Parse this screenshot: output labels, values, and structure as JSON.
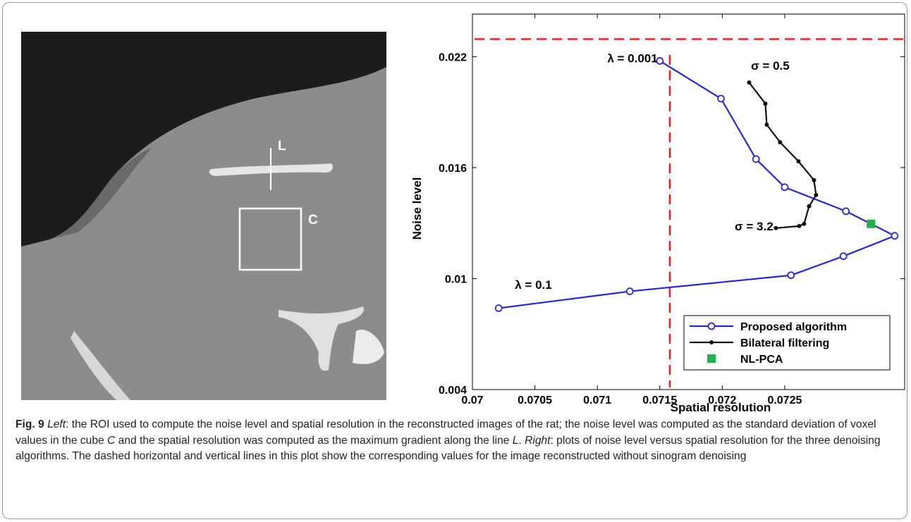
{
  "image": {
    "line_label": "L",
    "box_label": "C"
  },
  "chart_data": {
    "type": "scatter-line",
    "xlabel": "Spatial resolution",
    "ylabel": "Noise level",
    "xlim": [
      0.07,
      0.07346
    ],
    "ylim": [
      0.004,
      0.0243
    ],
    "xticks": [
      0.07,
      0.0705,
      0.071,
      0.0715,
      0.072,
      0.0725
    ],
    "yticks": [
      0.004,
      0.01,
      0.016,
      0.022
    ],
    "reference_lines": {
      "x": 0.07158,
      "y": 0.02295,
      "color": "#e8202a"
    },
    "legend": "lower right",
    "series": [
      {
        "name": "Proposed algorithm",
        "color": "#2626d8",
        "marker": "open-circle",
        "x": [
          0.07021,
          0.07126,
          0.07255,
          0.07297,
          0.07338,
          0.07299,
          0.0725,
          0.07227,
          0.07199,
          0.0715
        ],
        "values": [
          0.0084,
          0.00931,
          0.01018,
          0.01121,
          0.01231,
          0.01364,
          0.01494,
          0.01646,
          0.01973,
          0.02177
        ]
      },
      {
        "name": "Bilateral filtering",
        "color": "#111111",
        "marker": "dot",
        "x": [
          0.072215,
          0.072345,
          0.072356,
          0.072463,
          0.07261,
          0.072734,
          0.072751,
          0.072695,
          0.072655,
          0.072616,
          0.072429
        ],
        "values": [
          0.0206,
          0.01946,
          0.01832,
          0.01737,
          0.01634,
          0.01532,
          0.01452,
          0.01391,
          0.01296,
          0.01284,
          0.01273
        ]
      },
      {
        "name": "NL-PCA",
        "color": "#22b04a",
        "marker": "square",
        "x": [
          0.07319
        ],
        "values": [
          0.01296
        ]
      }
    ],
    "annotations": [
      {
        "text": "λ = 0.001",
        "x": 0.07108,
        "y": 0.0217
      },
      {
        "text": "σ = 0.5",
        "x": 0.07223,
        "y": 0.0213
      },
      {
        "text": "σ = 3.2",
        "x": 0.0721,
        "y": 0.01261
      },
      {
        "text": "λ = 0.1",
        "x": 0.07034,
        "y": 0.00945
      }
    ]
  },
  "caption": {
    "label": "Fig. 9",
    "parts": [
      "Left",
      ": the ROI used to compute the noise level and spatial resolution in the reconstructed images of the rat; the noise level was computed as the standard deviation of voxel values in the cube ",
      "C",
      " and the spatial resolution was computed as the maximum gradient along the line ",
      "L",
      ". ",
      "Right",
      ": plots of noise level versus spatial resolution for the three denoising algorithms. The dashed horizontal and vertical lines in this plot show the corresponding values for the image reconstructed without sinogram denoising"
    ]
  }
}
